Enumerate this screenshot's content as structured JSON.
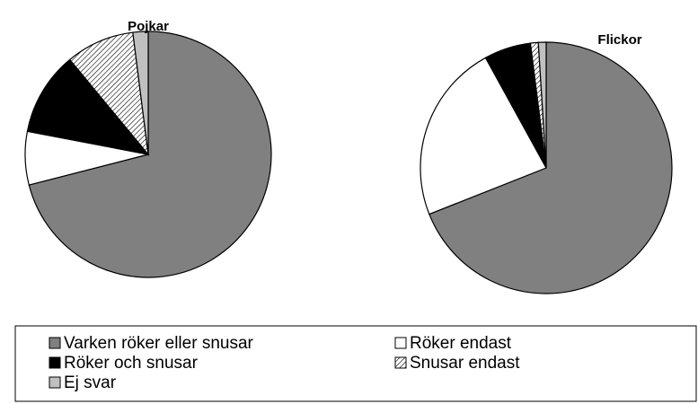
{
  "chart_data": [
    {
      "type": "pie",
      "title": "Pojkar",
      "categories": [
        "Varken röker eller snusar",
        "Röker endast",
        "Röker och snusar",
        "Snusar endast",
        "Ej svar"
      ],
      "values": [
        71,
        7,
        11,
        9,
        2
      ],
      "colors": [
        "#808080",
        "#ffffff",
        "#000000",
        "#ffffff",
        "#c0c0c0"
      ],
      "hatched": [
        false,
        false,
        false,
        true,
        false
      ],
      "legend": "bottom"
    },
    {
      "type": "pie",
      "title": "Flickor",
      "categories": [
        "Varken röker eller snusar",
        "Röker endast",
        "Röker och snusar",
        "Snusar endast",
        "Ej svar"
      ],
      "values": [
        69,
        23,
        6,
        1,
        1
      ],
      "colors": [
        "#808080",
        "#ffffff",
        "#000000",
        "#ffffff",
        "#c0c0c0"
      ],
      "hatched": [
        false,
        false,
        false,
        true,
        false
      ]
    }
  ]
}
